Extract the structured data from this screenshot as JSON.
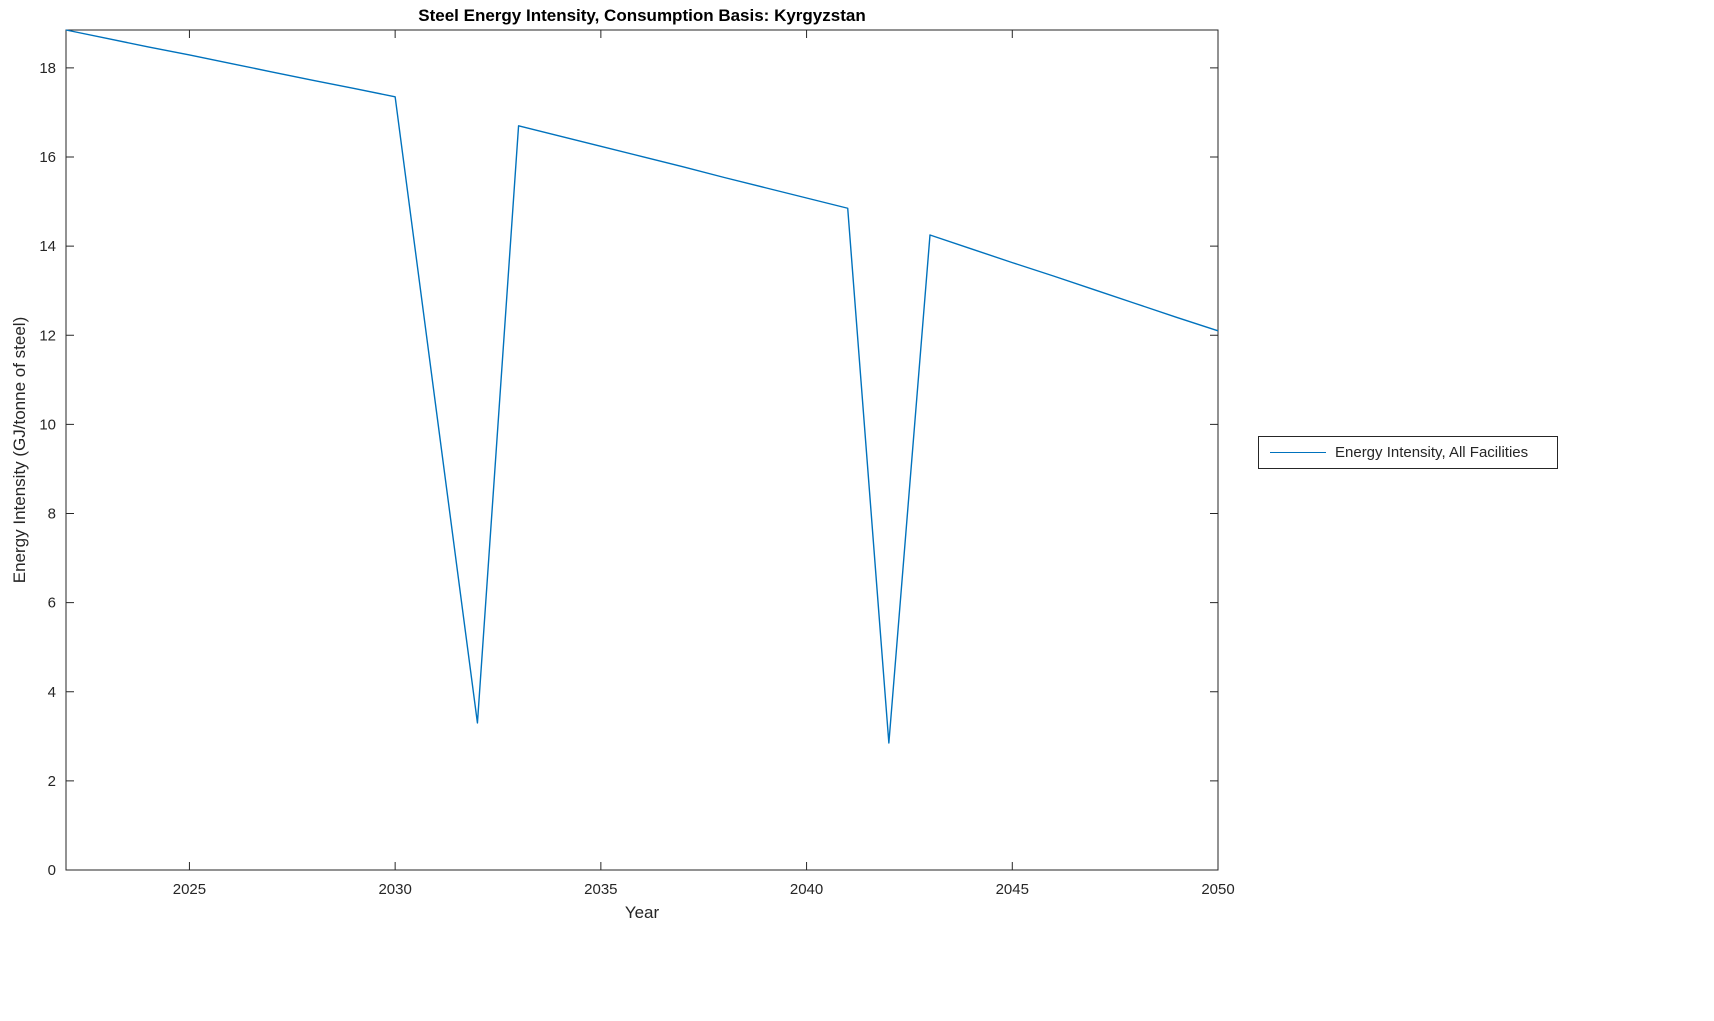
{
  "chart_data": {
    "type": "line",
    "title": "Steel Energy Intensity, Consumption Basis: Kyrgyzstan",
    "xlabel": "Year",
    "ylabel": "Energy Intensity (GJ/tonne of steel)",
    "xlim": [
      2022,
      2050
    ],
    "ylim": [
      0,
      18.85
    ],
    "x_ticks": [
      2025,
      2030,
      2035,
      2040,
      2045,
      2050
    ],
    "y_ticks": [
      0,
      2,
      4,
      6,
      8,
      10,
      12,
      14,
      16,
      18
    ],
    "grid": false,
    "legend_position": "right-outside",
    "series": [
      {
        "name": "Energy Intensity, All Facilities",
        "color": "#0072BD",
        "x": [
          2022,
          2023,
          2024,
          2025,
          2026,
          2027,
          2028,
          2029,
          2030,
          2031,
          2032,
          2033,
          2034,
          2035,
          2036,
          2037,
          2038,
          2039,
          2040,
          2041,
          2042,
          2043,
          2044,
          2045,
          2046,
          2047,
          2048,
          2049,
          2050
        ],
        "y": [
          18.85,
          18.66,
          18.47,
          18.29,
          18.1,
          17.91,
          17.72,
          17.54,
          17.35,
          10.32,
          3.3,
          16.7,
          16.47,
          16.24,
          16.01,
          15.78,
          15.54,
          15.31,
          15.08,
          14.85,
          2.85,
          14.25,
          13.94,
          13.63,
          13.33,
          13.02,
          12.71,
          12.4,
          12.1
        ]
      }
    ]
  }
}
